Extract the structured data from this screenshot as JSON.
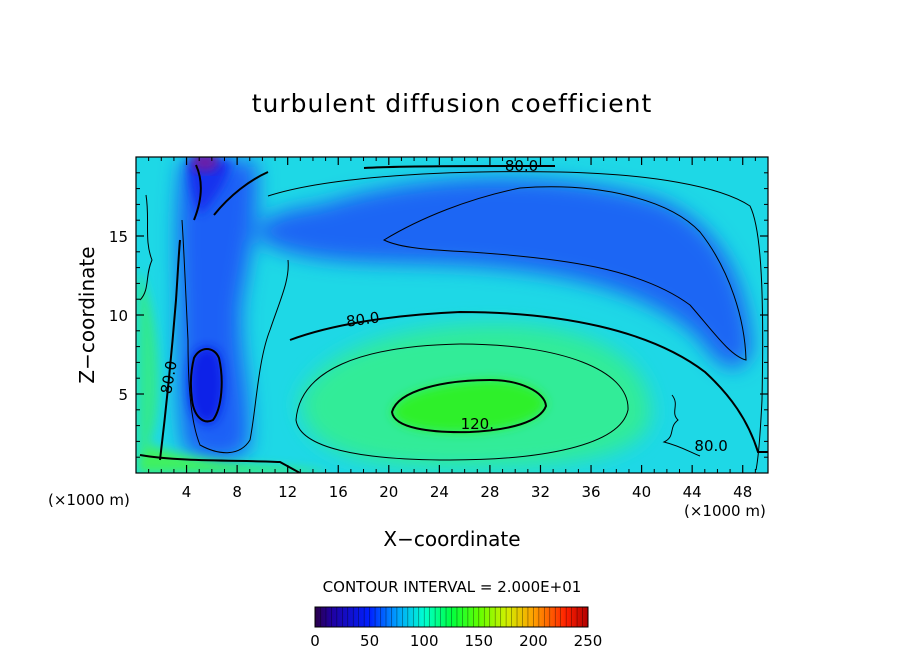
{
  "chart_data": {
    "type": "heatmap",
    "title": "turbulent diffusion coefficient",
    "xlabel": "X−coordinate",
    "ylabel": "Z−coordinate",
    "x_unit_left": "(×1000 m)",
    "x_unit_right": "(×1000 m)",
    "xlim": [
      0,
      50
    ],
    "ylim": [
      0,
      20
    ],
    "x_ticks": [
      4,
      8,
      12,
      16,
      20,
      24,
      28,
      32,
      36,
      40,
      44,
      48
    ],
    "x_tick_labels": [
      "4",
      "8",
      "12",
      "16",
      "20",
      "24",
      "28",
      "32",
      "36",
      "40",
      "44",
      "48"
    ],
    "y_ticks": [
      5,
      10,
      15
    ],
    "y_tick_labels": [
      "5",
      "10",
      "15"
    ],
    "contour_interval_text": "CONTOUR INTERVAL = 2.000E+01",
    "contour_labels": [
      {
        "text": "80.0",
        "x": 30.5,
        "z": 19.1
      },
      {
        "text": "80.0",
        "x": 18.0,
        "z": 9.4
      },
      {
        "text": "80.0",
        "x": 3.0,
        "z": 6.0
      },
      {
        "text": "120.",
        "x": 27.0,
        "z": 2.8
      },
      {
        "text": "80.0",
        "x": 45.5,
        "z": 1.4
      }
    ],
    "colorbar": {
      "min": 0,
      "max": 250,
      "tick_values": [
        0,
        50,
        100,
        150,
        200,
        250
      ],
      "tick_labels": [
        "0",
        "50",
        "100",
        "150",
        "200",
        "250"
      ]
    }
  }
}
